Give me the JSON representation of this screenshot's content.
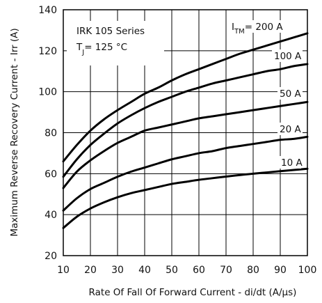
{
  "chart_data": {
    "type": "line",
    "xlabel": "Rate Of Fall Of Forward Current - di/dt (A/µs)",
    "ylabel": "Maximum Reverse Recovery Current - Irr (A)",
    "xlim": [
      10,
      100
    ],
    "ylim": [
      20,
      140
    ],
    "xticks": [
      10,
      20,
      30,
      40,
      50,
      60,
      70,
      80,
      90,
      100
    ],
    "yticks": [
      20,
      40,
      60,
      80,
      100,
      120,
      140
    ],
    "grid": true,
    "annotation": {
      "series_name": "IRK 105   Series",
      "tj_label": "T",
      "tj_sub": "J",
      "tj_value": "= 125 °C"
    },
    "series_label_prefix": "I",
    "series_label_sub": "TM",
    "series": [
      {
        "label": "= 200 A",
        "x": [
          10,
          15,
          20,
          25,
          30,
          35,
          40,
          45,
          50,
          55,
          60,
          65,
          70,
          75,
          80,
          85,
          90,
          95,
          100
        ],
        "y": [
          66,
          74,
          81,
          86.5,
          91,
          95,
          99,
          102,
          105.5,
          108.5,
          111,
          113.5,
          116,
          118.5,
          120.5,
          122.5,
          124.5,
          126.5,
          128.5
        ]
      },
      {
        "label": "100 A",
        "x": [
          10,
          15,
          20,
          25,
          30,
          35,
          40,
          45,
          50,
          55,
          60,
          65,
          70,
          75,
          80,
          85,
          90,
          95,
          100
        ],
        "y": [
          58.5,
          67,
          74,
          79.5,
          84.5,
          88.5,
          92,
          95,
          97.5,
          100,
          102,
          104,
          105.5,
          107,
          108.5,
          110,
          111,
          112.5,
          113.5
        ]
      },
      {
        "label": "50 A",
        "x": [
          10,
          15,
          20,
          25,
          30,
          35,
          40,
          45,
          50,
          55,
          60,
          65,
          70,
          75,
          80,
          85,
          90,
          95,
          100
        ],
        "y": [
          53,
          61,
          66.5,
          71,
          75,
          78,
          81,
          82.5,
          84,
          85.5,
          87,
          88,
          89,
          90,
          91,
          92,
          93,
          94,
          95
        ]
      },
      {
        "label": "20 A",
        "x": [
          10,
          15,
          20,
          25,
          30,
          35,
          40,
          45,
          50,
          55,
          60,
          65,
          70,
          75,
          80,
          85,
          90,
          95,
          100
        ],
        "y": [
          42,
          48,
          52.5,
          55.5,
          58.5,
          61,
          63,
          65,
          67,
          68.5,
          70,
          71,
          72.5,
          73.5,
          74.5,
          75.5,
          76.5,
          77,
          78
        ]
      },
      {
        "label": "10 A",
        "x": [
          10,
          15,
          20,
          25,
          30,
          35,
          40,
          45,
          50,
          55,
          60,
          65,
          70,
          75,
          80,
          85,
          90,
          95,
          100
        ],
        "y": [
          33.5,
          39,
          43,
          46,
          48.5,
          50.5,
          52,
          53.5,
          55,
          56,
          57,
          57.8,
          58.6,
          59.3,
          60,
          60.6,
          61.2,
          61.8,
          62.4
        ]
      }
    ]
  }
}
